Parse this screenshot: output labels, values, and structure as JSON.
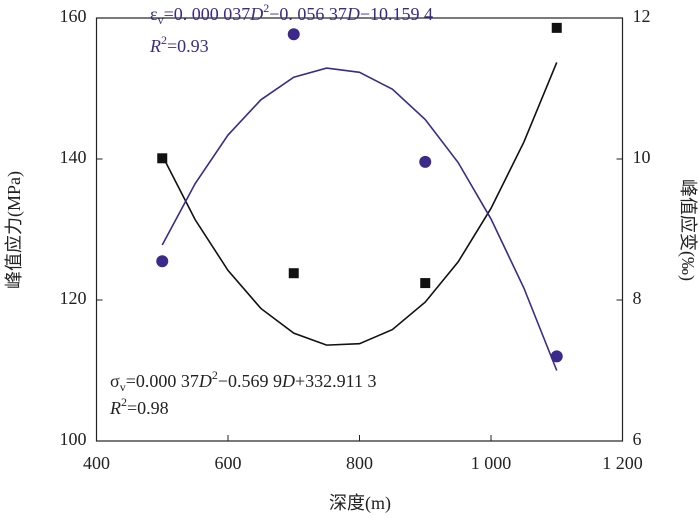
{
  "chart_data": {
    "type": "scatter-fit",
    "x_label": "深度(m)",
    "y_label": "峰值应力(MPa)",
    "y2_label": "峰值应变(‰)",
    "xlim": [
      400,
      1200
    ],
    "xticks": [
      400,
      600,
      800,
      {
        "value": 1000,
        "label": "1 000"
      },
      {
        "value": 1200,
        "label": "1 200"
      }
    ],
    "ylim": [
      100,
      160
    ],
    "yticks": [
      100,
      120,
      140,
      160
    ],
    "y2lim": [
      6,
      12
    ],
    "y2ticks": [
      6,
      8,
      10,
      12
    ],
    "annotations": [
      [
        "ε",
        "v",
        "=0. 000 037",
        "D",
        "2",
        "−0. 056 37",
        "D",
        "−10.159 4"
      ],
      [
        "R",
        "2",
        "=0.93"
      ],
      [
        "σ",
        "v",
        "=0.000 37",
        "D",
        "2",
        "−0.569 9",
        "D",
        "+332.911 3"
      ],
      [
        "R",
        "2",
        "=0.98"
      ]
    ],
    "series": [
      {
        "marker": "square",
        "color": "#111111",
        "x": [
          500,
          700,
          900,
          1100
        ],
        "values": [
          140.1,
          123.8,
          122.4,
          158.6
        ]
      },
      {
        "marker": "circle",
        "color": "#3b2a8a",
        "axis": "y2",
        "x": [
          500,
          700,
          900,
          1100
        ],
        "values": [
          8.55,
          11.77,
          9.96,
          7.2
        ]
      },
      {
        "marker": "line",
        "color": "#111111",
        "x": [
          500,
          550,
          600,
          650,
          700,
          750,
          800,
          850,
          900,
          950,
          1000,
          1050,
          1100
        ],
        "values": [
          140.5,
          131.4,
          124.2,
          118.8,
          115.3,
          113.6,
          113.8,
          115.8,
          119.7,
          125.4,
          133.0,
          142.4,
          153.7
        ]
      },
      {
        "marker": "line",
        "color": "#3b2a8a",
        "axis": "y2",
        "x": [
          500,
          550,
          600,
          650,
          700,
          750,
          800,
          850,
          900,
          950,
          1000,
          1050,
          1100
        ],
        "values": [
          8.78,
          9.65,
          10.34,
          10.84,
          11.16,
          11.29,
          11.23,
          10.99,
          10.56,
          9.95,
          9.15,
          8.17,
          7.0
        ]
      }
    ]
  }
}
